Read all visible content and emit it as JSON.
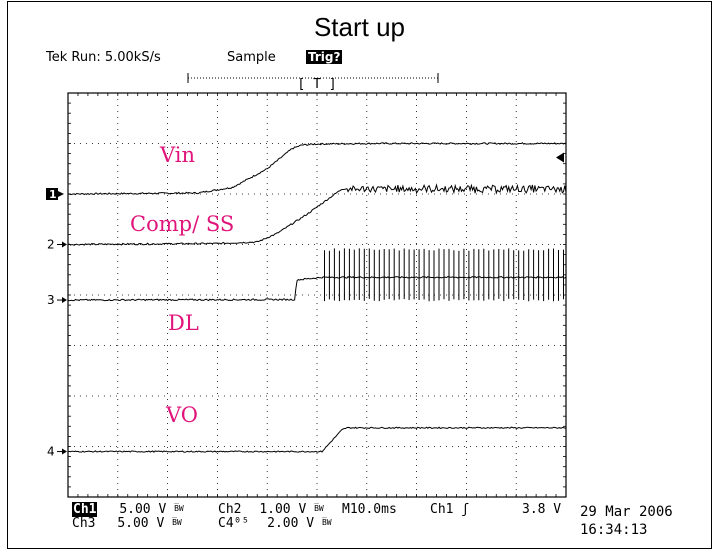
{
  "chart_data": {
    "type": "line",
    "title": "Start up",
    "instrument": {
      "brand": "Tek",
      "run_label": "Run: 5.00kS/s",
      "mode": "Sample",
      "trigger_status": "Trig?",
      "trigger_position_label": "T"
    },
    "x_unit": "ms",
    "x_per_div": 10,
    "divisions": {
      "x": 10,
      "y": 8
    },
    "xlim": [
      0,
      100
    ],
    "ylim": [
      0,
      8
    ],
    "grid": true,
    "series": [
      {
        "name": "Vin",
        "marker": "1",
        "ground_div": 6.0,
        "color": "#000000",
        "noise": 0.015,
        "x": [
          0,
          26,
          33,
          40,
          45,
          47,
          50,
          60,
          70,
          80,
          90,
          100
        ],
        "y": [
          6.0,
          6.02,
          6.13,
          6.5,
          6.9,
          6.97,
          6.99,
          7.0,
          7.0,
          7.0,
          7.0,
          7.0
        ]
      },
      {
        "name": "Comp/ SS",
        "marker": "2",
        "ground_div": 5.0,
        "color": "#000000",
        "noise": 0.015,
        "x": [
          0,
          30,
          38,
          42,
          48,
          55,
          60,
          70,
          80,
          90,
          100
        ],
        "y": [
          5.0,
          5.02,
          5.05,
          5.22,
          5.6,
          6.1,
          6.1,
          6.1,
          6.1,
          6.1,
          6.1
        ],
        "ripple": {
          "from_x": 56,
          "amp": 0.07
        }
      },
      {
        "name": "DL",
        "marker": "3",
        "ground_div": 3.9,
        "color": "#000000",
        "noise": 0.015,
        "x": [
          0,
          45.5,
          46,
          51,
          51.5,
          100
        ],
        "y": [
          3.9,
          3.91,
          4.3,
          4.35,
          4.35,
          4.35
        ],
        "switching": {
          "from_x": 51.5,
          "high": 4.9,
          "low": 3.9,
          "period": 1.0
        }
      },
      {
        "name": "VO",
        "marker": "4",
        "ground_div": 0.9,
        "color": "#000000",
        "noise": 0.012,
        "x": [
          0,
          51,
          55,
          56,
          60,
          70,
          80,
          90,
          100
        ],
        "y": [
          0.9,
          0.9,
          1.33,
          1.37,
          1.37,
          1.37,
          1.37,
          1.37,
          1.37
        ]
      }
    ],
    "trigger_level_div": 7.0,
    "readout": {
      "row1": [
        {
          "ch": "Ch1",
          "scale": "5.00 V",
          "bw": "B̅W"
        },
        {
          "ch": "Ch2",
          "scale": "1.00 V",
          "bw": "B̅W"
        },
        {
          "timebase": "M10.0ms"
        },
        {
          "trigger_source": "Ch1",
          "trigger_slope": "ʃ",
          "trigger_level": "3.8 V"
        }
      ],
      "row2": [
        {
          "ch": "Ch3",
          "scale": "5.00 V",
          "bw": "B̅W"
        },
        {
          "ch": "C4⁰⁵",
          "scale": "2.00 V",
          "bw": "B̅W"
        }
      ]
    },
    "date": "29 Mar 2006",
    "time": "16:34:13"
  }
}
